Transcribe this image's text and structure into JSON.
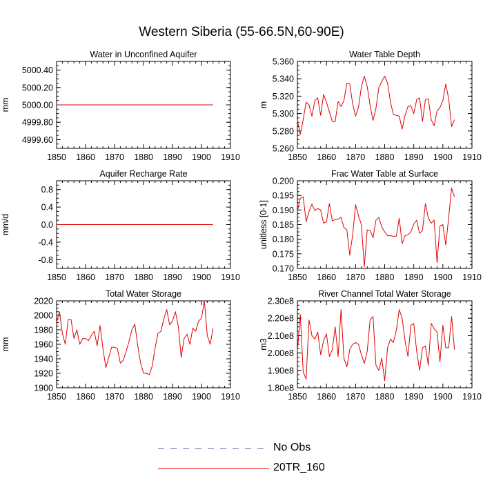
{
  "figure": {
    "title": "Western Siberia (55-66.5N,60-90E)"
  },
  "legend": {
    "entries": [
      {
        "label": "No Obs",
        "color": "#5a5aa8",
        "style": "dashed"
      },
      {
        "label": "20TR_160",
        "color": "#e00000",
        "style": "solid"
      }
    ]
  },
  "chart_data": [
    {
      "type": "line",
      "title": "Water in Unconfined Aquifer",
      "ylabel": "mm",
      "xlim": [
        1850,
        1910
      ],
      "ylim": [
        4999.5,
        5000.5
      ],
      "xticks": [
        1850,
        1860,
        1870,
        1880,
        1890,
        1900,
        1910
      ],
      "yticks": [
        4999.6,
        4999.8,
        5000.0,
        5000.2,
        5000.4
      ],
      "ytick_labels": [
        "4999.60",
        "4999.80",
        "5000.00",
        "5000.20",
        "5000.40"
      ],
      "series": [
        {
          "name": "20TR_160",
          "x_start": 1850,
          "x_step": 1,
          "values": [
            5000,
            5000,
            5000,
            5000,
            5000,
            5000,
            5000,
            5000,
            5000,
            5000,
            5000,
            5000,
            5000,
            5000,
            5000,
            5000,
            5000,
            5000,
            5000,
            5000,
            5000,
            5000,
            5000,
            5000,
            5000,
            5000,
            5000,
            5000,
            5000,
            5000,
            5000,
            5000,
            5000,
            5000,
            5000,
            5000,
            5000,
            5000,
            5000,
            5000,
            5000,
            5000,
            5000,
            5000,
            5000,
            5000,
            5000,
            5000,
            5000,
            5000,
            5000,
            5000,
            5000,
            5000,
            5000
          ]
        }
      ]
    },
    {
      "type": "line",
      "title": "Water Table Depth",
      "ylabel": "m",
      "xlim": [
        1850,
        1910
      ],
      "ylim": [
        5.26,
        5.36
      ],
      "xticks": [
        1850,
        1860,
        1870,
        1880,
        1890,
        1900,
        1910
      ],
      "yticks": [
        5.26,
        5.28,
        5.3,
        5.32,
        5.34,
        5.36
      ],
      "ytick_labels": [
        "5.260",
        "5.280",
        "5.300",
        "5.320",
        "5.340",
        "5.360"
      ],
      "series": [
        {
          "name": "20TR_160",
          "x_start": 1850,
          "x_step": 1,
          "values": [
            5.292,
            5.276,
            5.293,
            5.313,
            5.31,
            5.297,
            5.315,
            5.318,
            5.298,
            5.322,
            5.313,
            5.302,
            5.291,
            5.291,
            5.314,
            5.308,
            5.315,
            5.335,
            5.334,
            5.311,
            5.297,
            5.307,
            5.331,
            5.343,
            5.331,
            5.309,
            5.292,
            5.306,
            5.33,
            5.337,
            5.343,
            5.335,
            5.313,
            5.299,
            5.298,
            5.297,
            5.282,
            5.298,
            5.308,
            5.309,
            5.3,
            5.316,
            5.318,
            5.291,
            5.316,
            5.317,
            5.293,
            5.286,
            5.303,
            5.307,
            5.315,
            5.334,
            5.317,
            5.285,
            5.293
          ]
        }
      ]
    },
    {
      "type": "line",
      "title": "Aquifer Recharge Rate",
      "ylabel": "mm/d",
      "xlim": [
        1850,
        1910
      ],
      "ylim": [
        -1.0,
        1.0
      ],
      "xticks": [
        1850,
        1860,
        1870,
        1880,
        1890,
        1900,
        1910
      ],
      "yticks": [
        -0.8,
        -0.4,
        0.0,
        0.4,
        0.8
      ],
      "ytick_labels": [
        "-0.8",
        "-0.4",
        "0.0",
        "0.4",
        "0.8"
      ],
      "series": [
        {
          "name": "20TR_160",
          "x_start": 1850,
          "x_step": 1,
          "values": [
            0,
            0,
            0,
            0,
            0,
            0,
            0,
            0,
            0,
            0,
            0,
            0,
            0,
            0,
            0,
            0,
            0,
            0,
            0,
            0,
            0,
            0,
            0,
            0,
            0,
            0,
            0,
            0,
            0,
            0,
            0,
            0,
            0,
            0,
            0,
            0,
            0,
            0,
            0,
            0,
            0,
            0,
            0,
            0,
            0,
            0,
            0,
            0,
            0,
            0,
            0,
            0,
            0,
            0,
            0
          ]
        }
      ]
    },
    {
      "type": "line",
      "title": "Frac Water Table at Surface",
      "ylabel": "unitless [0-1]",
      "xlim": [
        1850,
        1910
      ],
      "ylim": [
        0.17,
        0.2
      ],
      "xticks": [
        1850,
        1860,
        1870,
        1880,
        1890,
        1900,
        1910
      ],
      "yticks": [
        0.17,
        0.175,
        0.18,
        0.185,
        0.19,
        0.195,
        0.2
      ],
      "ytick_labels": [
        "0.170",
        "0.175",
        "0.180",
        "0.185",
        "0.190",
        "0.195",
        "0.200"
      ],
      "series": [
        {
          "name": "20TR_160",
          "x_start": 1850,
          "x_step": 1,
          "values": [
            0.1895,
            0.194,
            0.1945,
            0.186,
            0.1895,
            0.192,
            0.1898,
            0.1905,
            0.19,
            0.1855,
            0.186,
            0.1922,
            0.1862,
            0.1868,
            0.1868,
            0.1875,
            0.184,
            0.1832,
            0.1745,
            0.1815,
            0.1918,
            0.188,
            0.185,
            0.1705,
            0.1832,
            0.183,
            0.1805,
            0.1865,
            0.1875,
            0.1842,
            0.1825,
            0.1812,
            0.1812,
            0.181,
            0.181,
            0.1872,
            0.1785,
            0.1812,
            0.1815,
            0.1825,
            0.1852,
            0.1865,
            0.182,
            0.183,
            0.1922,
            0.1872,
            0.1855,
            0.1865,
            0.172,
            0.1845,
            0.185,
            0.178,
            0.1875,
            0.1975,
            0.1945
          ]
        }
      ]
    },
    {
      "type": "line",
      "title": "Total Water Storage",
      "ylabel": "mm",
      "xlim": [
        1850,
        1910
      ],
      "ylim": [
        1900,
        2020
      ],
      "xticks": [
        1850,
        1860,
        1870,
        1880,
        1890,
        1900,
        1910
      ],
      "yticks": [
        1900,
        1920,
        1940,
        1960,
        1980,
        2000,
        2020
      ],
      "ytick_labels": [
        "1900",
        "1920",
        "1940",
        "1960",
        "1980",
        "2000",
        "2020"
      ],
      "series": [
        {
          "name": "20TR_160",
          "x_start": 1850,
          "x_step": 1,
          "values": [
            1990,
            2005,
            1975,
            1960,
            1994,
            1994,
            1968,
            1980,
            1960,
            1968,
            1968,
            1965,
            1972,
            1978,
            1958,
            1986,
            1954,
            1928,
            1942,
            1956,
            1956,
            1954,
            1934,
            1938,
            1950,
            1964,
            1980,
            1988,
            1958,
            1934,
            1920,
            1920,
            1918,
            1930,
            1955,
            1975,
            1978,
            1995,
            2008,
            1987,
            1992,
            2005,
            1985,
            1942,
            1968,
            1974,
            1960,
            1982,
            1978,
            1992,
            1996,
            2020,
            1972,
            1960,
            1982
          ]
        }
      ]
    },
    {
      "type": "line",
      "title": "River Channel Total Water Storage",
      "ylabel": "m3",
      "xlim": [
        1850,
        1910
      ],
      "ylim": [
        180000000.0,
        230000000.0
      ],
      "xticks": [
        1850,
        1860,
        1870,
        1880,
        1890,
        1900,
        1910
      ],
      "yticks": [
        180000000.0,
        190000000.0,
        200000000.0,
        210000000.0,
        220000000.0,
        230000000.0
      ],
      "ytick_labels": [
        "1.80e8",
        "1.90e8",
        "2.00e8",
        "2.10e8",
        "2.20e8",
        "2.30e8"
      ],
      "series": [
        {
          "name": "20TR_160",
          "x_start": 1850,
          "x_step": 1,
          "values": [
            201000000.0,
            222000000.0,
            189000000.0,
            185000000.0,
            219000000.0,
            210000000.0,
            208000000.0,
            212000000.0,
            199000000.0,
            207000000.0,
            211000000.0,
            198000000.0,
            202000000.0,
            215000000.0,
            198000000.0,
            225000000.0,
            197000000.0,
            192000000.0,
            202000000.0,
            205000000.0,
            206000000.0,
            205000000.0,
            199000000.0,
            194000000.0,
            201000000.0,
            219000000.0,
            221000000.0,
            193000000.0,
            190000000.0,
            197000000.0,
            184000000.0,
            203000000.0,
            208000000.0,
            206000000.0,
            213000000.0,
            225000000.0,
            220000000.0,
            207000000.0,
            198000000.0,
            216000000.0,
            217000000.0,
            201000000.0,
            190000000.0,
            203000000.0,
            204000000.0,
            193000000.0,
            217000000.0,
            214000000.0,
            212000000.0,
            195000000.0,
            216000000.0,
            203000000.0,
            203000000.0,
            221000000.0,
            202000000.0
          ]
        }
      ]
    }
  ]
}
